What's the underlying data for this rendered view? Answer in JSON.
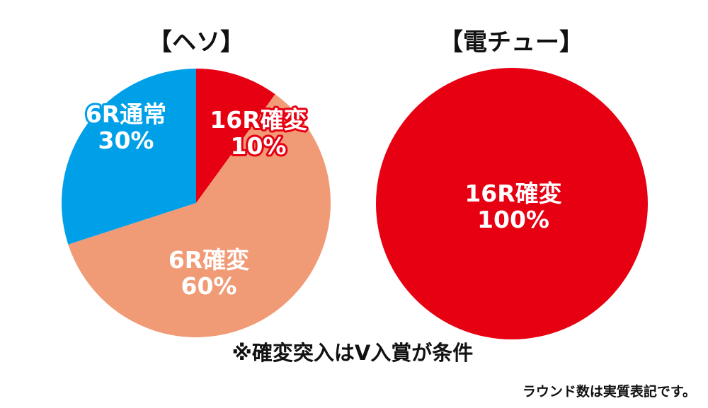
{
  "chart_data": [
    {
      "type": "pie",
      "title": "【ヘソ】",
      "slices": [
        {
          "name": "16R確変",
          "value": 10,
          "label": "10%",
          "color": "#e60012",
          "outline": "#e60012"
        },
        {
          "name": "6R確変",
          "value": 60,
          "label": "60%",
          "color": "#f19b76",
          "outline": ""
        },
        {
          "name": "6R通常",
          "value": 30,
          "label": "30%",
          "color": "#00a0e9",
          "outline": "#00a0e9"
        }
      ]
    },
    {
      "type": "pie",
      "title": "【電チュー】",
      "slices": [
        {
          "name": "16R確変",
          "value": 100,
          "label": "100%",
          "color": "#e60012",
          "outline": ""
        }
      ]
    }
  ],
  "notes": {
    "condition": "※確変突入はV入賞が条件",
    "rounds": "ラウンド数は実質表記です。"
  }
}
